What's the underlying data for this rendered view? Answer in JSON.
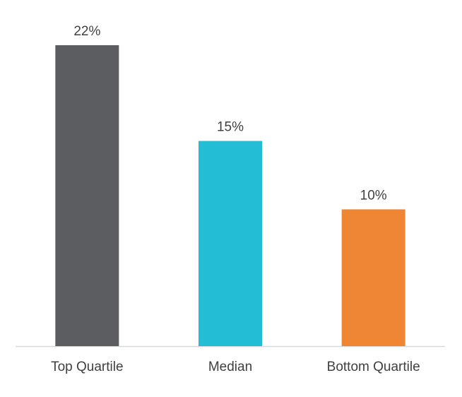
{
  "chart_data": {
    "type": "bar",
    "categories": [
      "Top Quartile",
      "Median",
      "Bottom Quartile"
    ],
    "values": [
      22,
      15,
      10
    ],
    "value_labels": [
      "22%",
      "15%",
      "10%"
    ],
    "colors": [
      "#5c5d61",
      "#23bdd6",
      "#ef8634"
    ]
  }
}
